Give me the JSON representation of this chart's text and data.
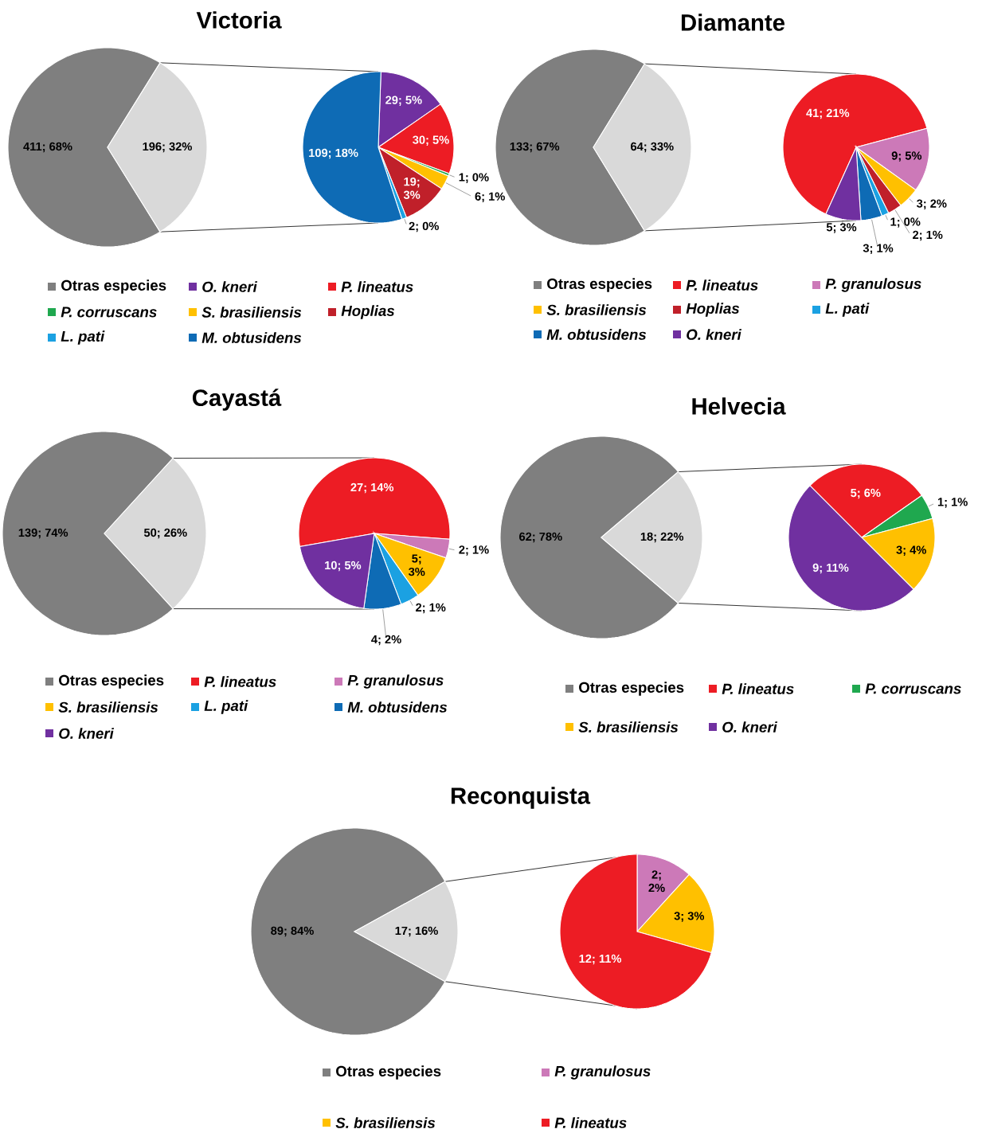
{
  "chart_data": [
    {
      "type": "pie",
      "title": "Victoria",
      "categories": [
        "Otras especies",
        null
      ],
      "values": [
        411,
        196
      ],
      "colors": [
        "#7f7f7f",
        "#d9d9d9"
      ],
      "value_labels": [
        "411; 68%",
        "196; 32%"
      ],
      "legend": "bottom"
    },
    {
      "type": "pie",
      "categories": [
        "O. kneri",
        "P. lineatus",
        "P. corruscans",
        "S. brasiliensis",
        "Hoplias",
        "L. pati",
        "M. obtusidens"
      ],
      "values": [
        29,
        30,
        1,
        6,
        19,
        2,
        109
      ],
      "colors": [
        "#7030a0",
        "#ed1c24",
        "#1fa84f",
        "#ffc000",
        "#c0202a",
        "#1ba1e2",
        "#0e6bb5"
      ],
      "value_labels": [
        "29; 5%",
        "30; 5%",
        "1; 0%",
        "6; 1%",
        "19; 3%",
        "2; 0%",
        "109; 18%"
      ],
      "legend": "bottom"
    },
    {
      "type": "pie",
      "title": "Diamante",
      "categories": [
        "Otras especies",
        null
      ],
      "values": [
        133,
        64
      ],
      "colors": [
        "#7f7f7f",
        "#d9d9d9"
      ],
      "value_labels": [
        "133; 67%",
        "64; 33%"
      ],
      "legend": "bottom"
    },
    {
      "type": "pie",
      "categories": [
        "P. lineatus",
        "P. granulosus",
        "S. brasiliensis",
        "Hoplias",
        "L. pati",
        "M. obtusidens",
        "O. kneri"
      ],
      "values": [
        41,
        9,
        3,
        2,
        1,
        3,
        5
      ],
      "colors": [
        "#ed1c24",
        "#cc79b8",
        "#ffc000",
        "#c0202a",
        "#1ba1e2",
        "#0e6bb5",
        "#7030a0"
      ],
      "value_labels": [
        "41; 21%",
        "9; 5%",
        "3; 2%",
        "2; 1%",
        "1; 0%",
        "3; 1%",
        "5; 3%"
      ],
      "legend": "bottom"
    },
    {
      "type": "pie",
      "title": "Cayastá",
      "categories": [
        "Otras especies",
        null
      ],
      "values": [
        139,
        50
      ],
      "colors": [
        "#7f7f7f",
        "#d9d9d9"
      ],
      "value_labels": [
        "139; 74%",
        "50; 26%"
      ],
      "legend": "bottom"
    },
    {
      "type": "pie",
      "categories": [
        "P. lineatus",
        "P. granulosus",
        "S. brasiliensis",
        "L. pati",
        "M. obtusidens",
        "O. kneri"
      ],
      "values": [
        27,
        2,
        5,
        2,
        4,
        10
      ],
      "colors": [
        "#ed1c24",
        "#cc79b8",
        "#ffc000",
        "#1ba1e2",
        "#0e6bb5",
        "#7030a0"
      ],
      "value_labels": [
        "27; 14%",
        "2; 1%",
        "5; 3%",
        "2; 1%",
        "4; 2%",
        "10; 5%"
      ],
      "legend": "bottom"
    },
    {
      "type": "pie",
      "title": "Helvecia",
      "categories": [
        "Otras especies",
        null
      ],
      "values": [
        62,
        18
      ],
      "colors": [
        "#7f7f7f",
        "#d9d9d9"
      ],
      "value_labels": [
        "62; 78%",
        "18; 22%"
      ],
      "legend": "bottom"
    },
    {
      "type": "pie",
      "categories": [
        "P. lineatus",
        "P. corruscans",
        "S. brasiliensis",
        "O. kneri"
      ],
      "values": [
        5,
        1,
        3,
        9
      ],
      "colors": [
        "#ed1c24",
        "#1fa84f",
        "#ffc000",
        "#7030a0"
      ],
      "value_labels": [
        "5; 6%",
        "1; 1%",
        "3; 4%",
        "9; 11%"
      ],
      "legend": "bottom"
    },
    {
      "type": "pie",
      "title": "Reconquista",
      "categories": [
        "Otras especies",
        null
      ],
      "values": [
        89,
        17
      ],
      "colors": [
        "#7f7f7f",
        "#d9d9d9"
      ],
      "value_labels": [
        "89; 84%",
        "17; 16%"
      ],
      "legend": "bottom"
    },
    {
      "type": "pie",
      "categories": [
        "P. granulosus",
        "S. brasiliensis",
        "P. lineatus"
      ],
      "values": [
        2,
        3,
        12
      ],
      "colors": [
        "#cc79b8",
        "#ffc000",
        "#ed1c24"
      ],
      "value_labels": [
        "2; 2%",
        "3; 3%",
        "12; 11%"
      ],
      "legend": "bottom"
    }
  ]
}
